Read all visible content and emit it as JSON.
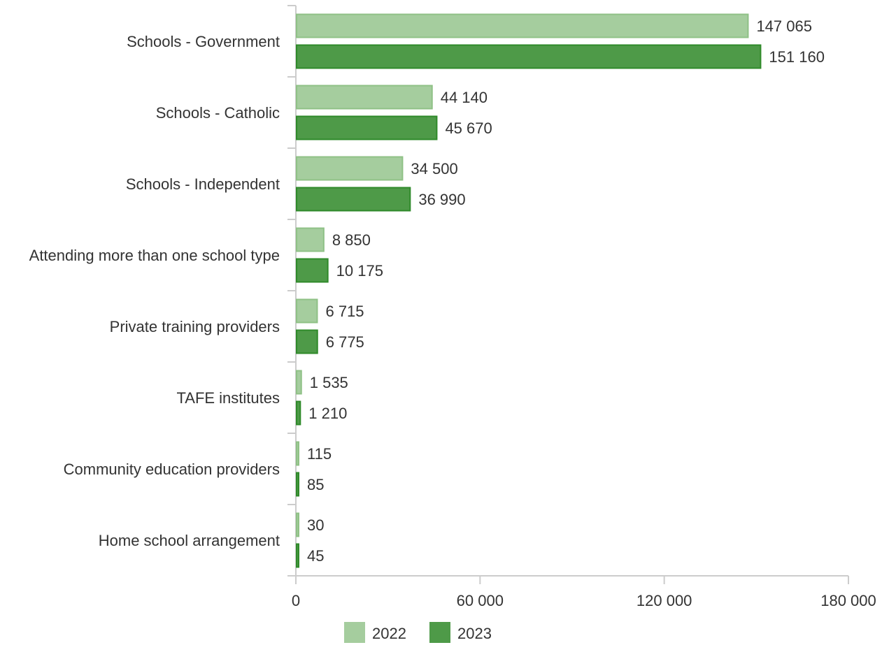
{
  "chart_data": {
    "type": "bar",
    "orientation": "horizontal",
    "categories": [
      "Schools - Government",
      "Schools - Catholic",
      "Schools - Independent",
      "Attending more than one school type",
      "Private training providers",
      "TAFE institutes",
      "Community education providers",
      "Home school arrangement"
    ],
    "series": [
      {
        "name": "2022",
        "color": "#a5cd9e",
        "stroke": "#8fc186",
        "values": [
          147065,
          44140,
          34500,
          8850,
          6715,
          1535,
          115,
          30
        ],
        "labels": [
          "147 065",
          "44 140",
          "34 500",
          "8 850",
          "6 715",
          "1 535",
          "115",
          "30"
        ]
      },
      {
        "name": "2023",
        "color": "#4e9a48",
        "stroke": "#2f8a2a",
        "values": [
          151160,
          45670,
          36990,
          10175,
          6775,
          1210,
          85,
          45
        ],
        "labels": [
          "151 160",
          "45 670",
          "36 990",
          "10 175",
          "6 775",
          "1 210",
          "85",
          "45"
        ]
      }
    ],
    "xlim": [
      0,
      180000
    ],
    "xticks": [
      0,
      60000,
      120000,
      180000
    ],
    "xtick_labels": [
      "0",
      "60 000",
      "120 000",
      "180 000"
    ],
    "grid": false,
    "legend_position": "bottom-center",
    "title": "",
    "xlabel": "",
    "ylabel": ""
  }
}
